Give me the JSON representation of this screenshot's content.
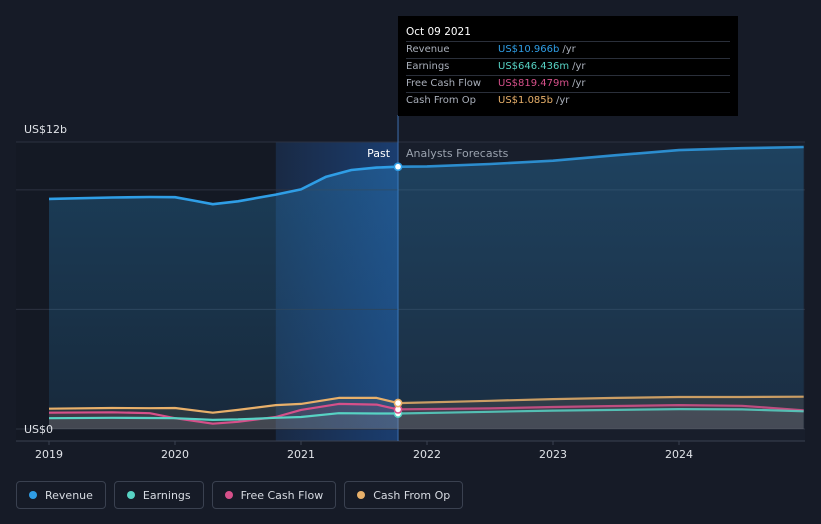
{
  "chart_data": {
    "type": "line",
    "y_axis": {
      "top_label": "US$12b",
      "bottom_label": "US$0",
      "ylim": [
        0,
        12
      ]
    },
    "x_ticks": [
      "2019",
      "2020",
      "2021",
      "2022",
      "2023",
      "2024"
    ],
    "region_labels": {
      "past": "Past",
      "forecast": "Analysts Forecasts"
    },
    "colors": {
      "background": "#161b27",
      "revenue": "#2f9ee6",
      "earnings": "#57d3c4",
      "free_cash_flow": "#d6508a",
      "cash_from_op": "#e8b06a",
      "past_highlight": "#1b3f73",
      "grid": "#2c3240"
    },
    "past_start": 2020.8,
    "today": 2021.77,
    "series": [
      {
        "name": "Revenue",
        "key": "revenue",
        "points": [
          [
            2019.0,
            9.62
          ],
          [
            2019.5,
            9.68
          ],
          [
            2019.8,
            9.7
          ],
          [
            2020.0,
            9.69
          ],
          [
            2020.15,
            9.55
          ],
          [
            2020.3,
            9.4
          ],
          [
            2020.5,
            9.52
          ],
          [
            2020.8,
            9.8
          ],
          [
            2021.0,
            10.02
          ],
          [
            2021.2,
            10.55
          ],
          [
            2021.4,
            10.83
          ],
          [
            2021.6,
            10.93
          ],
          [
            2021.77,
            10.966
          ]
        ],
        "forecast": [
          [
            2021.77,
            10.966
          ],
          [
            2022.0,
            10.98
          ],
          [
            2022.5,
            11.08
          ],
          [
            2023.0,
            11.22
          ],
          [
            2023.5,
            11.45
          ],
          [
            2024.0,
            11.66
          ],
          [
            2024.5,
            11.74
          ],
          [
            2024.99,
            11.79
          ]
        ]
      },
      {
        "name": "Earnings",
        "key": "earnings",
        "points": [
          [
            2019.0,
            0.45
          ],
          [
            2019.5,
            0.47
          ],
          [
            2019.8,
            0.46
          ],
          [
            2020.0,
            0.45
          ],
          [
            2020.3,
            0.38
          ],
          [
            2020.5,
            0.4
          ],
          [
            2020.8,
            0.47
          ],
          [
            2021.0,
            0.5
          ],
          [
            2021.3,
            0.66
          ],
          [
            2021.6,
            0.65
          ],
          [
            2021.77,
            0.646
          ]
        ],
        "forecast": [
          [
            2021.77,
            0.646
          ],
          [
            2022.5,
            0.72
          ],
          [
            2023.0,
            0.77
          ],
          [
            2023.5,
            0.8
          ],
          [
            2024.0,
            0.83
          ],
          [
            2024.5,
            0.82
          ],
          [
            2024.99,
            0.74
          ]
        ]
      },
      {
        "name": "Free Cash Flow",
        "key": "free_cash_flow",
        "points": [
          [
            2019.0,
            0.68
          ],
          [
            2019.5,
            0.7
          ],
          [
            2019.8,
            0.66
          ],
          [
            2020.0,
            0.45
          ],
          [
            2020.3,
            0.22
          ],
          [
            2020.5,
            0.3
          ],
          [
            2020.8,
            0.5
          ],
          [
            2021.0,
            0.8
          ],
          [
            2021.3,
            1.05
          ],
          [
            2021.6,
            1.02
          ],
          [
            2021.77,
            0.819
          ]
        ],
        "forecast": [
          [
            2021.77,
            0.819
          ],
          [
            2022.5,
            0.86
          ],
          [
            2023.0,
            0.92
          ],
          [
            2023.5,
            0.96
          ],
          [
            2024.0,
            1.0
          ],
          [
            2024.5,
            0.97
          ],
          [
            2024.99,
            0.78
          ]
        ]
      },
      {
        "name": "Cash From Op",
        "key": "cash_from_op",
        "points": [
          [
            2019.0,
            0.85
          ],
          [
            2019.5,
            0.88
          ],
          [
            2019.8,
            0.87
          ],
          [
            2020.0,
            0.88
          ],
          [
            2020.3,
            0.68
          ],
          [
            2020.5,
            0.8
          ],
          [
            2020.8,
            1.0
          ],
          [
            2021.0,
            1.05
          ],
          [
            2021.3,
            1.3
          ],
          [
            2021.6,
            1.3
          ],
          [
            2021.77,
            1.085
          ]
        ],
        "forecast": [
          [
            2021.77,
            1.085
          ],
          [
            2022.5,
            1.18
          ],
          [
            2023.0,
            1.25
          ],
          [
            2023.5,
            1.3
          ],
          [
            2024.0,
            1.34
          ],
          [
            2024.5,
            1.34
          ],
          [
            2024.99,
            1.35
          ]
        ]
      }
    ]
  },
  "tooltip": {
    "date": "Oct 09 2021",
    "rows": [
      {
        "label": "Revenue",
        "value": "US$10.966b",
        "unit": "/yr",
        "color": "#2f9ee6"
      },
      {
        "label": "Earnings",
        "value": "US$646.436m",
        "unit": "/yr",
        "color": "#57d3c4"
      },
      {
        "label": "Free Cash Flow",
        "value": "US$819.479m",
        "unit": "/yr",
        "color": "#d6508a"
      },
      {
        "label": "Cash From Op",
        "value": "US$1.085b",
        "unit": "/yr",
        "color": "#e8b06a"
      }
    ]
  },
  "legend": {
    "items": [
      {
        "label": "Revenue",
        "color": "#2f9ee6"
      },
      {
        "label": "Earnings",
        "color": "#57d3c4"
      },
      {
        "label": "Free Cash Flow",
        "color": "#d6508a"
      },
      {
        "label": "Cash From Op",
        "color": "#e8b06a"
      }
    ]
  }
}
